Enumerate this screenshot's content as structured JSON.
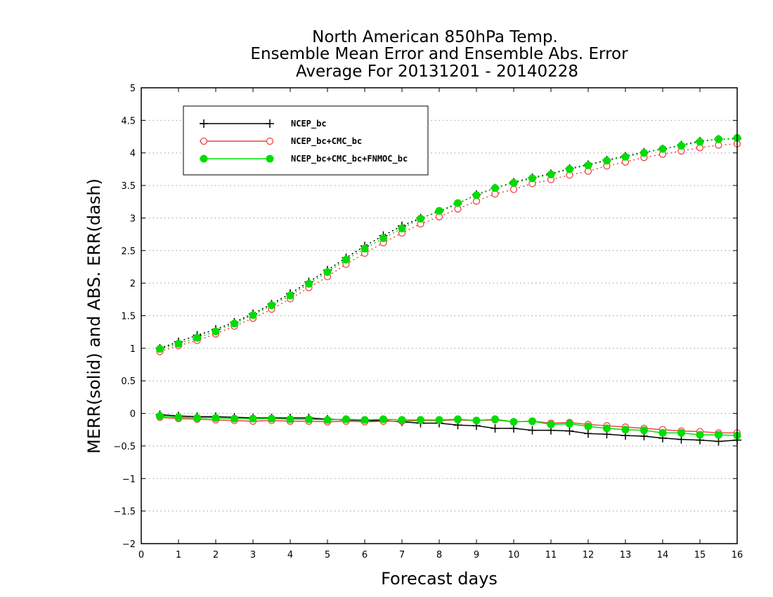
{
  "chart_data": {
    "type": "line",
    "title": [
      "North American 850hPa Temp.",
      "Ensemble Mean Error and Ensemble Abs. Error",
      "Average For 20131201 - 20140228"
    ],
    "xlabel": "Forecast days",
    "ylabel": "MERR(solid) and ABS. ERR(dash)",
    "xlim": [
      0,
      16
    ],
    "ylim": [
      -2,
      5
    ],
    "x_ticks": [
      "0",
      "1",
      "2",
      "3",
      "4",
      "5",
      "6",
      "7",
      "8",
      "9",
      "10",
      "11",
      "12",
      "13",
      "14",
      "15",
      "16"
    ],
    "y_ticks": [
      "5",
      "4.5",
      "4",
      "3.5",
      "3",
      "2.5",
      "2",
      "1.5",
      "1",
      "0.5",
      "0",
      "−0.5",
      "−1",
      "−1.5",
      "−2"
    ],
    "grid": true,
    "legend_position": "top-left",
    "x": [
      0.5,
      1,
      1.5,
      2,
      2.5,
      3,
      3.5,
      4,
      4.5,
      5,
      5.5,
      6,
      6.5,
      7,
      7.5,
      8,
      8.5,
      9,
      9.5,
      10,
      10.5,
      11,
      11.5,
      12,
      12.5,
      13,
      13.5,
      14,
      14.5,
      15,
      15.5,
      16
    ],
    "series": [
      {
        "name": "NCEP_bc",
        "color": "#000000",
        "marker": "plus",
        "abs_err": [
          1.0,
          1.1,
          1.2,
          1.29,
          1.4,
          1.53,
          1.68,
          1.84,
          2.02,
          2.2,
          2.39,
          2.57,
          2.73,
          2.88,
          3.0,
          3.1,
          3.22,
          3.36,
          3.46,
          3.55,
          3.62,
          3.68,
          3.76,
          3.82,
          3.89,
          3.95,
          4.01,
          4.06,
          4.12,
          4.18,
          4.21,
          4.22
        ],
        "mean_err": [
          -0.02,
          -0.04,
          -0.05,
          -0.05,
          -0.06,
          -0.07,
          -0.07,
          -0.07,
          -0.07,
          -0.09,
          -0.1,
          -0.11,
          -0.11,
          -0.13,
          -0.15,
          -0.15,
          -0.18,
          -0.19,
          -0.23,
          -0.23,
          -0.26,
          -0.26,
          -0.27,
          -0.31,
          -0.32,
          -0.34,
          -0.35,
          -0.38,
          -0.4,
          -0.41,
          -0.43,
          -0.41
        ]
      },
      {
        "name": "NCEP_bc+CMC_bc",
        "color": "#ee4444",
        "marker": "circle-open",
        "abs_err": [
          0.95,
          1.04,
          1.12,
          1.22,
          1.34,
          1.46,
          1.6,
          1.76,
          1.93,
          2.1,
          2.29,
          2.46,
          2.62,
          2.77,
          2.91,
          3.02,
          3.14,
          3.26,
          3.37,
          3.44,
          3.53,
          3.59,
          3.66,
          3.72,
          3.8,
          3.86,
          3.93,
          3.98,
          4.03,
          4.08,
          4.12,
          4.14
        ],
        "mean_err": [
          -0.06,
          -0.08,
          -0.09,
          -0.1,
          -0.11,
          -0.12,
          -0.11,
          -0.12,
          -0.12,
          -0.13,
          -0.12,
          -0.13,
          -0.12,
          -0.12,
          -0.11,
          -0.11,
          -0.1,
          -0.11,
          -0.1,
          -0.13,
          -0.12,
          -0.15,
          -0.14,
          -0.17,
          -0.19,
          -0.21,
          -0.23,
          -0.25,
          -0.27,
          -0.28,
          -0.3,
          -0.3
        ]
      },
      {
        "name": "NCEP_bc+CMC_bc+FNMOC_bc",
        "color": "#00dd00",
        "marker": "circle-filled",
        "abs_err": [
          0.99,
          1.07,
          1.16,
          1.26,
          1.38,
          1.51,
          1.66,
          1.81,
          1.99,
          2.17,
          2.36,
          2.53,
          2.69,
          2.84,
          2.99,
          3.11,
          3.23,
          3.35,
          3.46,
          3.54,
          3.61,
          3.67,
          3.75,
          3.81,
          3.88,
          3.94,
          4.0,
          4.06,
          4.11,
          4.17,
          4.21,
          4.23
        ],
        "mean_err": [
          -0.04,
          -0.06,
          -0.07,
          -0.07,
          -0.08,
          -0.08,
          -0.08,
          -0.09,
          -0.09,
          -0.1,
          -0.09,
          -0.1,
          -0.09,
          -0.1,
          -0.1,
          -0.1,
          -0.09,
          -0.11,
          -0.09,
          -0.13,
          -0.12,
          -0.17,
          -0.16,
          -0.2,
          -0.23,
          -0.25,
          -0.26,
          -0.3,
          -0.3,
          -0.33,
          -0.33,
          -0.34
        ]
      }
    ]
  }
}
